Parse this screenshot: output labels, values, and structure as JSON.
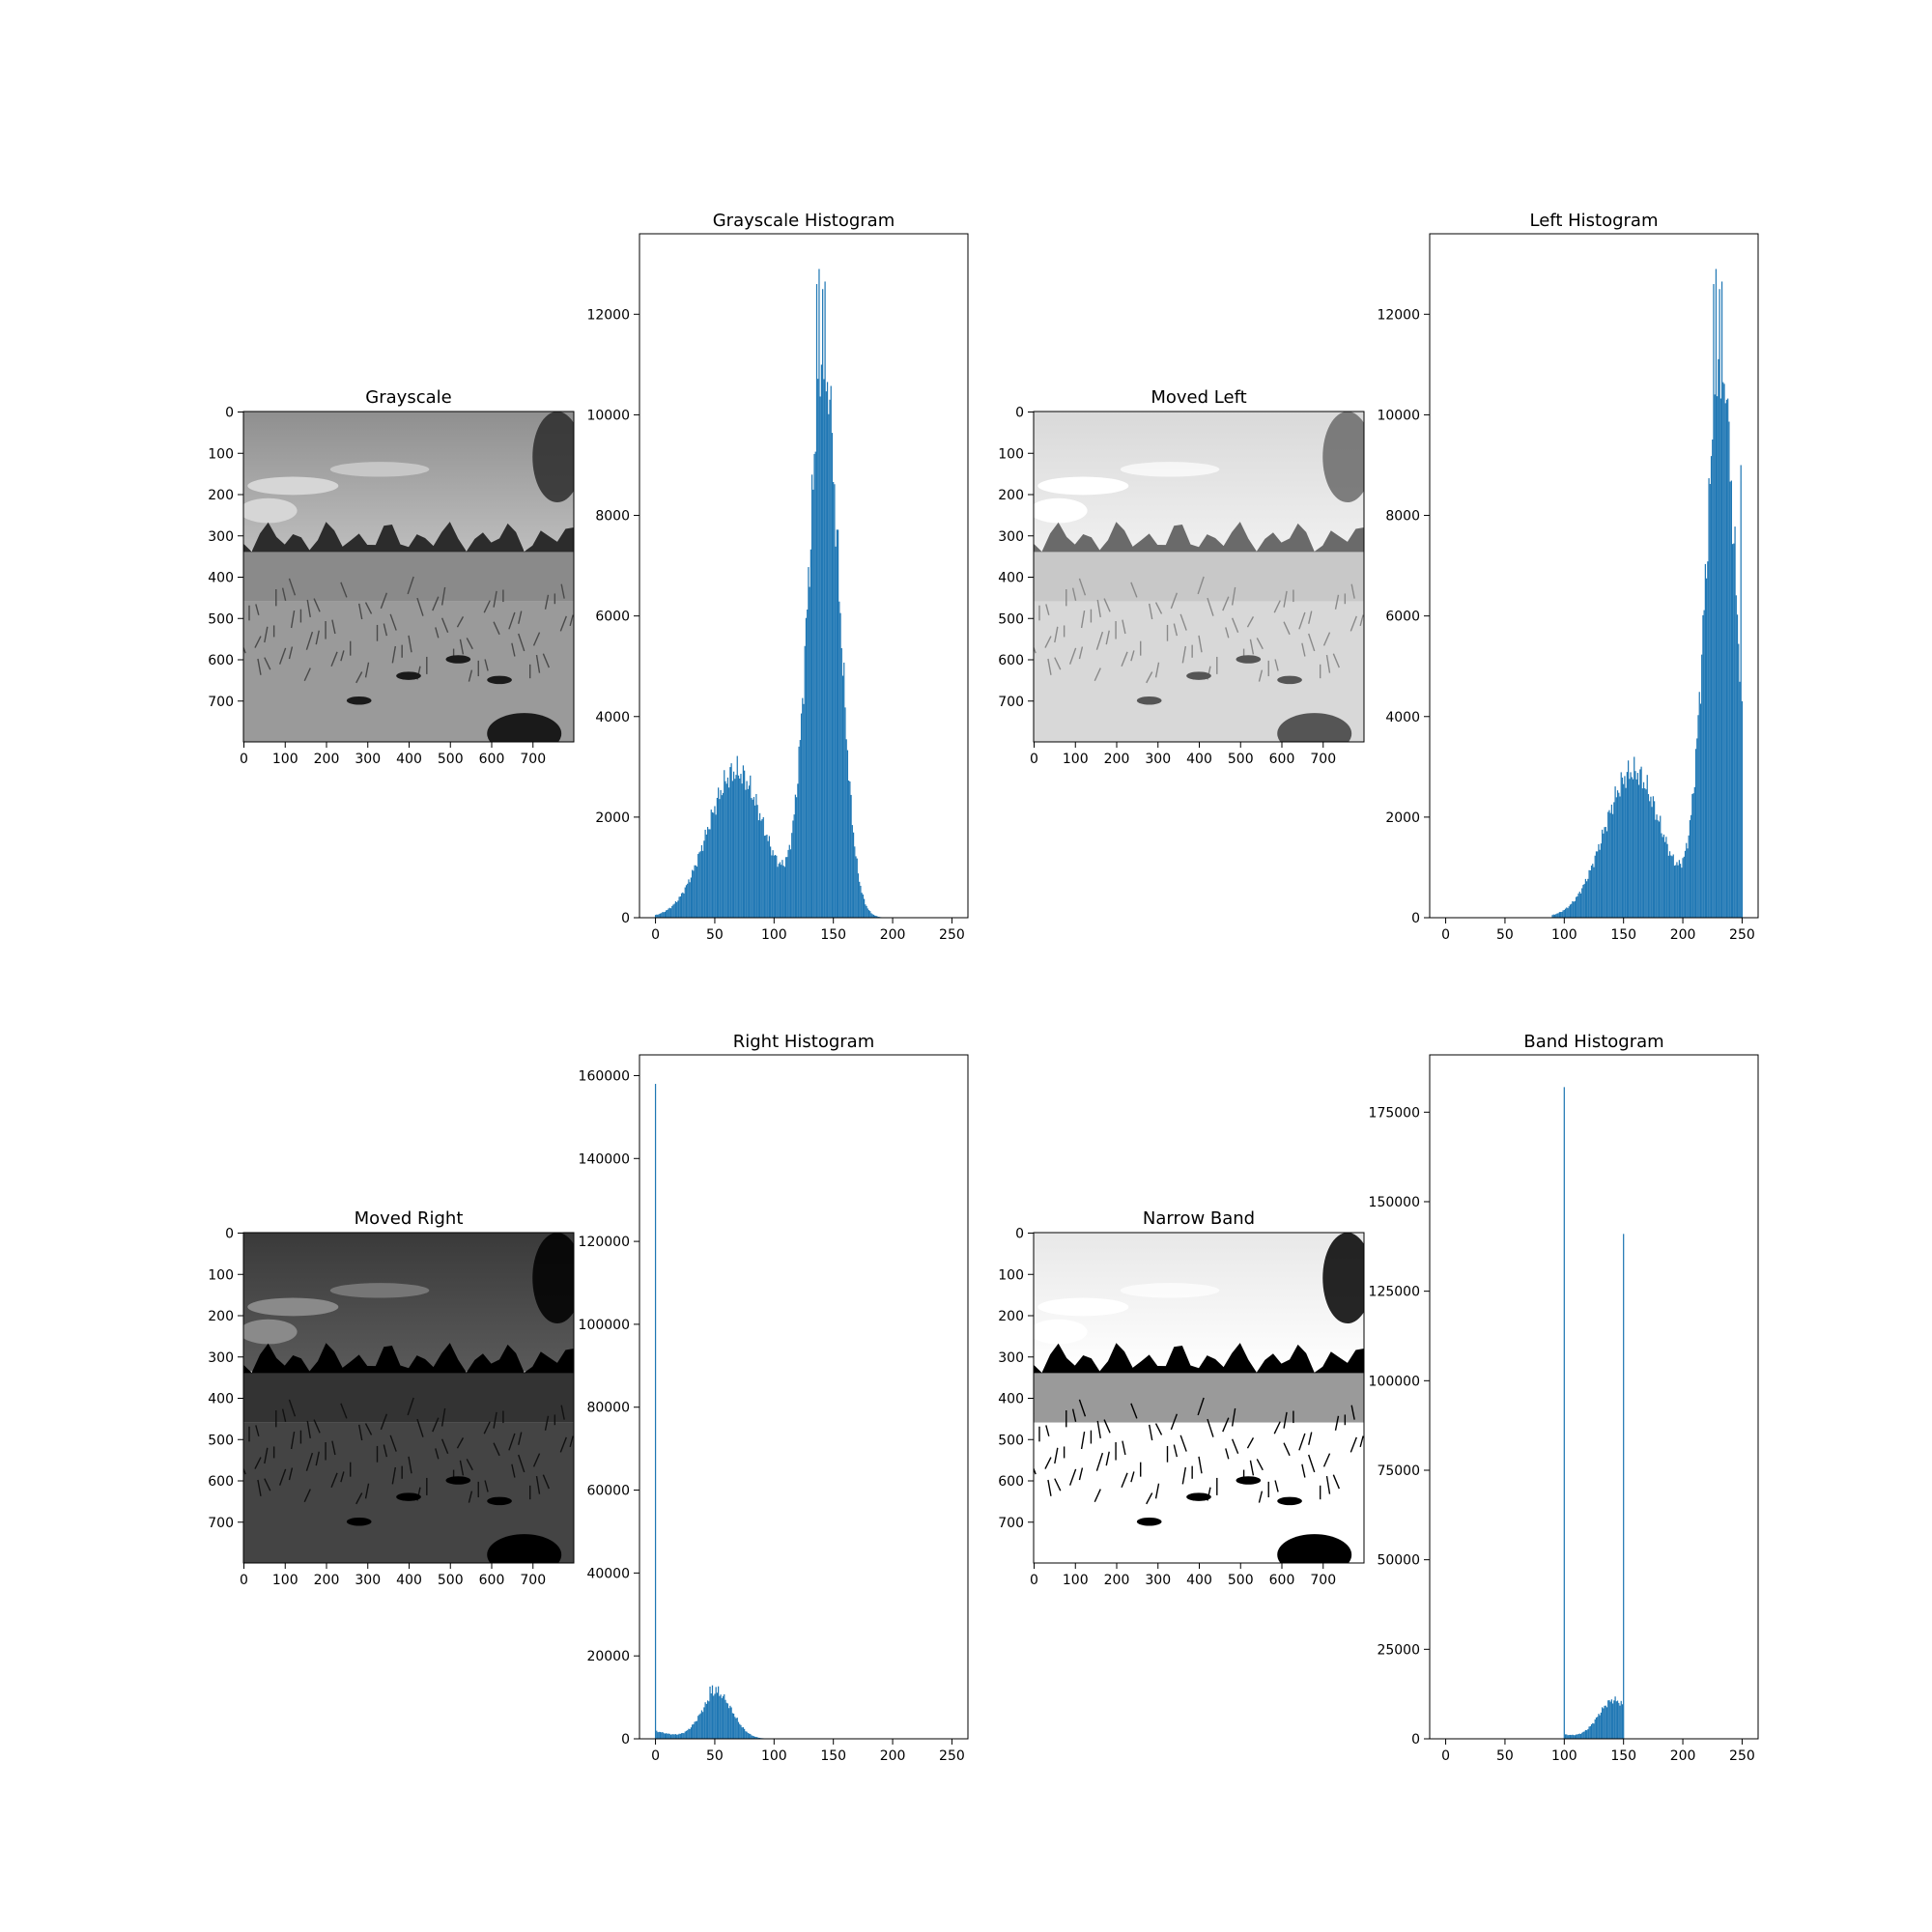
{
  "figure": {
    "background": "#ffffff"
  },
  "panels": [
    {
      "id": "gray",
      "kind": "image",
      "title": "Grayscale",
      "transform": "identity",
      "xticks": [
        "0",
        "100",
        "200",
        "300",
        "400",
        "500",
        "600",
        "700"
      ],
      "yticks": [
        "0",
        "100",
        "200",
        "300",
        "400",
        "500",
        "600",
        "700"
      ],
      "xlim": [
        0,
        800
      ],
      "ylim": [
        0,
        800
      ]
    },
    {
      "id": "left",
      "kind": "image",
      "title": "Moved Left",
      "transform": "shift_plus_90",
      "xticks": [
        "0",
        "100",
        "200",
        "300",
        "400",
        "500",
        "600",
        "700"
      ],
      "yticks": [
        "0",
        "100",
        "200",
        "300",
        "400",
        "500",
        "600",
        "700"
      ],
      "xlim": [
        0,
        800
      ],
      "ylim": [
        0,
        800
      ]
    },
    {
      "id": "right",
      "kind": "image",
      "title": "Moved Right",
      "transform": "shift_minus_90",
      "xticks": [
        "0",
        "100",
        "200",
        "300",
        "400",
        "500",
        "600",
        "700"
      ],
      "yticks": [
        "0",
        "100",
        "200",
        "300",
        "400",
        "500",
        "600",
        "700"
      ],
      "xlim": [
        0,
        800
      ],
      "ylim": [
        0,
        800
      ]
    },
    {
      "id": "band",
      "kind": "image",
      "title": "Narrow Band",
      "transform": "clip_100_150",
      "xticks": [
        "0",
        "100",
        "200",
        "300",
        "400",
        "500",
        "600",
        "700"
      ],
      "yticks": [
        "0",
        "100",
        "200",
        "300",
        "400",
        "500",
        "600",
        "700"
      ],
      "xlim": [
        0,
        800
      ],
      "ylim": [
        0,
        800
      ]
    }
  ],
  "chart_data": [
    {
      "type": "bar",
      "id": "gray_hist",
      "title": "Grayscale Histogram",
      "xlabel": "",
      "ylabel": "",
      "color": "#1f77b4",
      "xlim": [
        -13,
        264
      ],
      "ylim": [
        0,
        13600
      ],
      "xticks": [
        0,
        50,
        100,
        150,
        200,
        250
      ],
      "yticks": [
        0,
        2000,
        4000,
        6000,
        8000,
        10000,
        12000
      ],
      "shape": {
        "kind": "bimodal",
        "start": 0,
        "end": 250,
        "mode1_center": 68,
        "mode1_width": 24,
        "mode1_height": 2900,
        "mode2_center": 142,
        "mode2_width": 13,
        "mode2_height": 10800,
        "tail": 0
      },
      "spikes": [
        [
          136,
          12600
        ],
        [
          138,
          12900
        ],
        [
          141,
          12500
        ],
        [
          143,
          12650
        ],
        [
          147,
          10300
        ]
      ]
    },
    {
      "type": "bar",
      "id": "left_hist",
      "title": "Left Histogram",
      "xlabel": "",
      "ylabel": "",
      "color": "#1f77b4",
      "xlim": [
        -13,
        264
      ],
      "ylim": [
        0,
        13600
      ],
      "xticks": [
        0,
        50,
        100,
        150,
        200,
        250
      ],
      "yticks": [
        0,
        2000,
        4000,
        6000,
        8000,
        10000,
        12000
      ],
      "shape": {
        "kind": "bimodal",
        "start": 90,
        "end": 250,
        "mode1_center": 158,
        "mode1_width": 24,
        "mode1_height": 2900,
        "mode2_center": 232,
        "mode2_width": 13,
        "mode2_height": 10800,
        "tail": 0,
        "pile_up_value": 9000
      },
      "spikes": [
        [
          226,
          12600
        ],
        [
          228,
          12900
        ],
        [
          231,
          12500
        ],
        [
          233,
          12650
        ],
        [
          237,
          10300
        ],
        [
          249,
          9000
        ]
      ]
    },
    {
      "type": "bar",
      "id": "right_hist",
      "title": "Right Histogram",
      "xlabel": "",
      "ylabel": "",
      "color": "#1f77b4",
      "xlim": [
        -13,
        264
      ],
      "ylim": [
        0,
        165000
      ],
      "xticks": [
        0,
        50,
        100,
        150,
        200,
        250
      ],
      "yticks": [
        0,
        20000,
        40000,
        60000,
        80000,
        100000,
        120000,
        140000,
        160000
      ],
      "shape": {
        "kind": "bimodal",
        "start": 0,
        "end": 130,
        "mode1_center": -22,
        "mode1_width": 24,
        "mode1_height": 2900,
        "mode2_center": 52,
        "mode2_width": 13,
        "mode2_height": 10800,
        "tail": 0
      },
      "spikes": [
        [
          0,
          158000
        ],
        [
          46,
          12600
        ],
        [
          48,
          12900
        ],
        [
          51,
          12500
        ],
        [
          53,
          12650
        ],
        [
          57,
          10300
        ]
      ]
    },
    {
      "type": "bar",
      "id": "band_hist",
      "title": "Band Histogram",
      "xlabel": "",
      "ylabel": "",
      "color": "#1f77b4",
      "xlim": [
        -13,
        264
      ],
      "ylim": [
        0,
        191000
      ],
      "xticks": [
        0,
        50,
        100,
        150,
        200,
        250
      ],
      "yticks": [
        0,
        25000,
        50000,
        75000,
        100000,
        125000,
        150000,
        175000
      ],
      "shape": {
        "kind": "bimodal",
        "start": 100,
        "end": 150,
        "mode1_center": 68,
        "mode1_width": 24,
        "mode1_height": 2900,
        "mode2_center": 142,
        "mode2_width": 13,
        "mode2_height": 10800,
        "tail": 0
      },
      "spikes": [
        [
          100,
          182000
        ],
        [
          150,
          141000
        ]
      ]
    }
  ]
}
